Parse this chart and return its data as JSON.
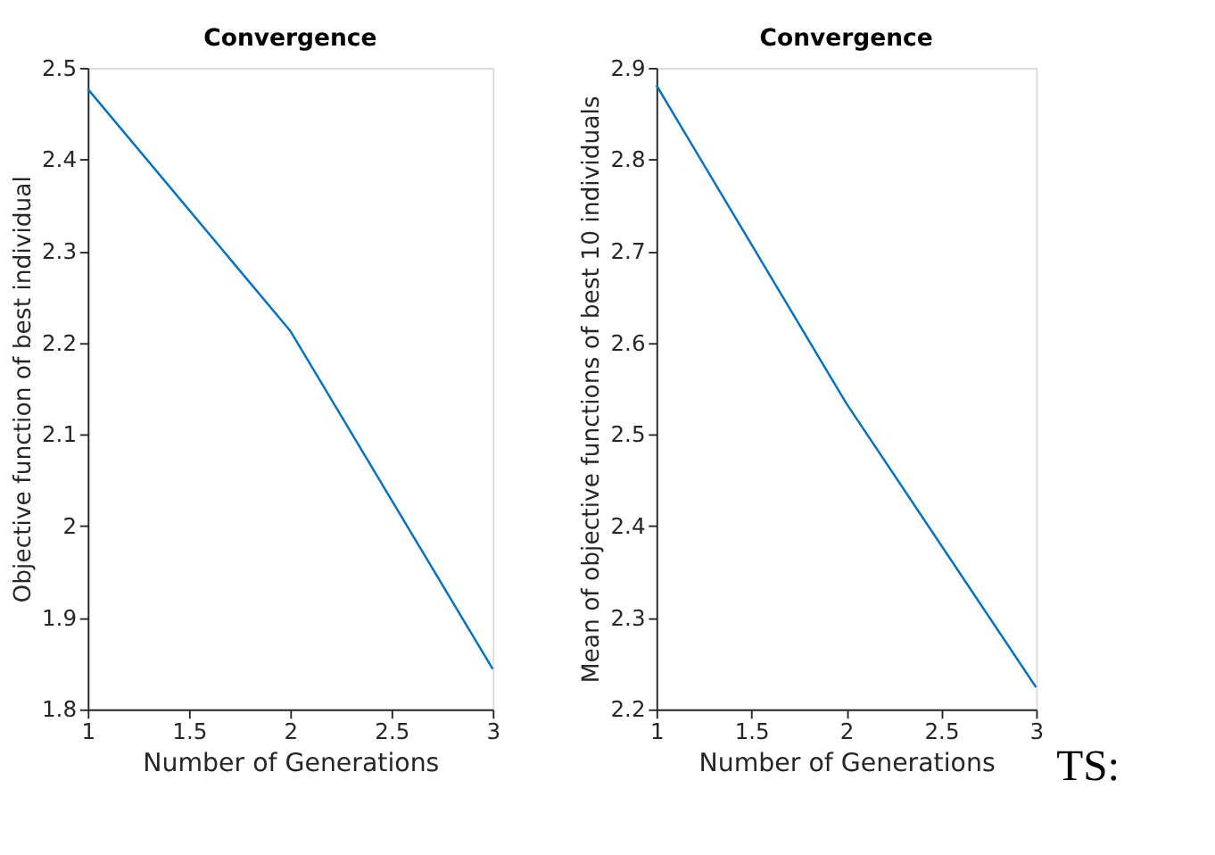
{
  "chart_data": [
    {
      "type": "line",
      "title": "Convergence",
      "xlabel": "Number of Generations",
      "ylabel": "Objective function of best individual",
      "x": [
        1,
        2,
        3
      ],
      "series": [
        {
          "color": "#0072bd",
          "values": [
            2.477,
            2.213,
            1.844
          ]
        }
      ],
      "xlim": [
        1,
        3
      ],
      "xticks": [
        1,
        1.5,
        2,
        2.5,
        3
      ],
      "ylim": [
        1.8,
        2.5
      ],
      "yticks": [
        1.8,
        1.9,
        2,
        2.1,
        2.2,
        2.3,
        2.4,
        2.5
      ],
      "grid": false,
      "marker": "none",
      "line_style": "solid"
    },
    {
      "type": "line",
      "title": "Convergence",
      "xlabel": "Number of Generations",
      "ylabel": "Mean of objective functions of best 10 individuals",
      "x": [
        1,
        2,
        3
      ],
      "series": [
        {
          "color": "#0072bd",
          "values": [
            2.881,
            2.534,
            2.224
          ]
        }
      ],
      "xlim": [
        1,
        3
      ],
      "xticks": [
        1,
        1.5,
        2,
        2.5,
        3
      ],
      "ylim": [
        2.2,
        2.9
      ],
      "yticks": [
        2.2,
        2.3,
        2.4,
        2.5,
        2.6,
        2.7,
        2.8,
        2.9
      ],
      "grid": false,
      "marker": "none",
      "line_style": "solid",
      "annotations": [
        "TS:"
      ]
    }
  ]
}
